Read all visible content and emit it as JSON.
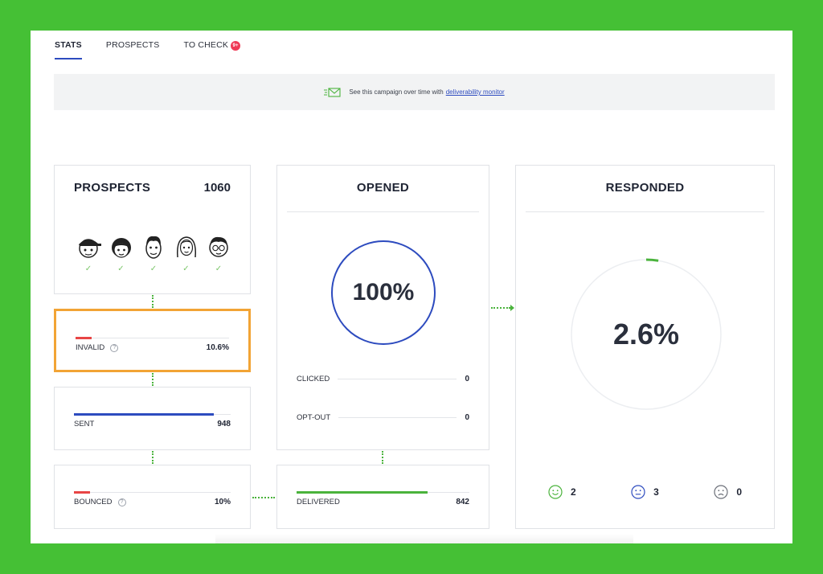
{
  "tabs": [
    {
      "label": "STATS",
      "active": true
    },
    {
      "label": "PROSPECTS",
      "active": false
    },
    {
      "label": "TO CHECK",
      "active": false,
      "badge": "9+"
    }
  ],
  "banner": {
    "text": "See this campaign over time with",
    "link": "deliverability monitor",
    "icon": "email-chart-icon"
  },
  "prospects": {
    "title": "PROSPECTS",
    "count": "1060",
    "avatars": [
      "avatar-cap",
      "avatar-girl-bangs",
      "avatar-boy-hair",
      "avatar-woman-long-hair",
      "avatar-glasses"
    ],
    "check": "✓"
  },
  "invalid": {
    "label": "INVALID",
    "value": "10.6%",
    "fill_fraction": 0.106,
    "color": "#e84545"
  },
  "sent": {
    "label": "SENT",
    "value": "948",
    "fill_fraction": 0.894,
    "color": "#2d4bbf"
  },
  "bounced": {
    "label": "BOUNCED",
    "value": "10%",
    "fill_fraction": 0.1,
    "color": "#e84545"
  },
  "opened": {
    "title": "OPENED",
    "percent": "100%",
    "fraction": 1.0,
    "color": "#2d4bbf",
    "clicked": {
      "label": "CLICKED",
      "value": "0"
    },
    "optout": {
      "label": "OPT-OUT",
      "value": "0"
    }
  },
  "delivered": {
    "label": "DELIVERED",
    "value": "842",
    "fill_fraction": 0.76,
    "color": "#4ab33c"
  },
  "responded": {
    "title": "RESPONDED",
    "percent": "2.6%",
    "fraction": 0.026,
    "color": "#4ab33c",
    "sentiments": [
      {
        "icon": "happy-face-icon",
        "value": "2",
        "color": "#4ab33c"
      },
      {
        "icon": "neutral-face-icon",
        "value": "3",
        "color": "#2d4bbf"
      },
      {
        "icon": "sad-face-icon",
        "value": "0",
        "color": "#6b6f78"
      }
    ]
  }
}
